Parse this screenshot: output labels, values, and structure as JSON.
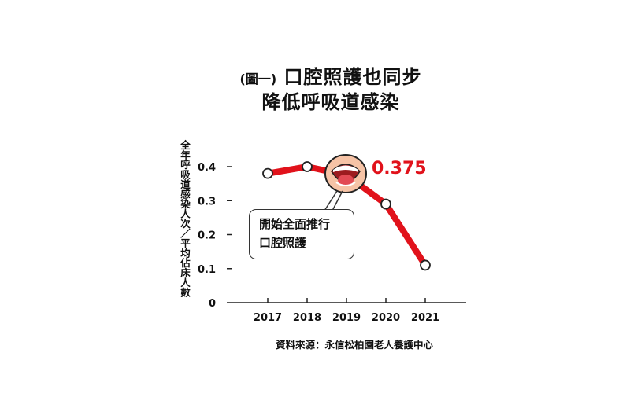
{
  "header": {
    "title_prefix": "(圖一)",
    "title_main": "口腔照護也同步",
    "title_line2": "降低呼吸道感染"
  },
  "callout": {
    "line1": "開始全面推行",
    "line2": "口腔照護"
  },
  "source_note": "資料來源：永信松柏園老人養護中心",
  "chart_data": {
    "type": "line",
    "x": [
      "2017",
      "2018",
      "2019",
      "2020",
      "2021"
    ],
    "series": [
      {
        "values": [
          0.38,
          0.4,
          0.375,
          0.29,
          0.11
        ],
        "color": "#e1121b"
      }
    ],
    "ylabel": "全年呼吸道感染人次／平均佔床人數",
    "ylim": [
      0,
      0.4
    ],
    "yticks": [
      "0",
      "0.1",
      "0.2",
      "0.3",
      "0.4"
    ],
    "highlight_label": "0.375",
    "highlight_color": "#e1121b",
    "highlight_index": 2,
    "grid": false,
    "icon": "open-mouth-icon"
  }
}
